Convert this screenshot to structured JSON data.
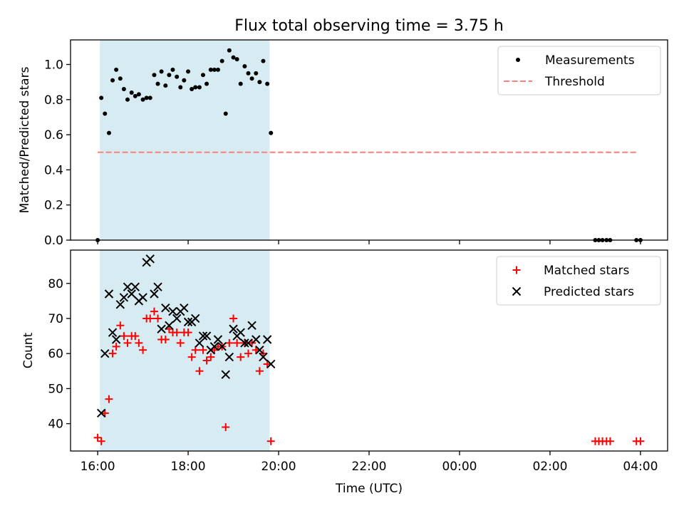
{
  "figure": {
    "title": "Flux total observing time = 3.75 h"
  },
  "colors": {
    "shade": "#add8e6",
    "measurement": "#000000",
    "threshold": "#ff7f7f",
    "matched": "#ff0000",
    "predicted": "#000000"
  },
  "chart_data": [
    {
      "type": "scatter",
      "title": "Flux total observing time = 3.75 h",
      "xlabel": "",
      "ylabel": "Matched/Predicted stars",
      "x_ticks": [
        "16:00",
        "18:00",
        "20:00",
        "22:00",
        "00:00",
        "02:00",
        "04:00"
      ],
      "x_tick_labels_shown": false,
      "xlim_hours": [
        15.4,
        28.6
      ],
      "ylim": [
        0.0,
        1.14
      ],
      "y_ticks": [
        "0.0",
        "0.2",
        "0.4",
        "0.6",
        "0.8",
        "1.0"
      ],
      "shaded_interval_hours": [
        16.05,
        19.8
      ],
      "legend_position": "top-right",
      "series": [
        {
          "name": "Measurements",
          "marker": "dot",
          "points": [
            [
              16.0,
              0.0
            ],
            [
              16.08,
              0.81
            ],
            [
              16.16,
              0.72
            ],
            [
              16.25,
              0.61
            ],
            [
              16.33,
              0.91
            ],
            [
              16.41,
              0.97
            ],
            [
              16.5,
              0.92
            ],
            [
              16.58,
              0.86
            ],
            [
              16.66,
              0.8
            ],
            [
              16.75,
              0.84
            ],
            [
              16.83,
              0.82
            ],
            [
              16.91,
              0.83
            ],
            [
              17.0,
              0.8
            ],
            [
              17.08,
              0.81
            ],
            [
              17.16,
              0.81
            ],
            [
              17.25,
              0.94
            ],
            [
              17.33,
              0.89
            ],
            [
              17.41,
              0.96
            ],
            [
              17.5,
              0.88
            ],
            [
              17.58,
              0.94
            ],
            [
              17.66,
              0.97
            ],
            [
              17.75,
              0.93
            ],
            [
              17.83,
              0.87
            ],
            [
              17.91,
              0.91
            ],
            [
              18.0,
              0.96
            ],
            [
              18.08,
              0.86
            ],
            [
              18.16,
              0.87
            ],
            [
              18.25,
              0.87
            ],
            [
              18.33,
              0.94
            ],
            [
              18.41,
              0.89
            ],
            [
              18.5,
              0.97
            ],
            [
              18.58,
              0.97
            ],
            [
              18.66,
              0.97
            ],
            [
              18.75,
              1.02
            ],
            [
              18.83,
              0.72
            ],
            [
              18.91,
              1.08
            ],
            [
              19.0,
              1.04
            ],
            [
              19.08,
              1.03
            ],
            [
              19.16,
              0.89
            ],
            [
              19.25,
              0.99
            ],
            [
              19.33,
              0.95
            ],
            [
              19.41,
              0.92
            ],
            [
              19.5,
              0.95
            ],
            [
              19.58,
              0.9
            ],
            [
              19.66,
              1.02
            ],
            [
              19.75,
              0.89
            ],
            [
              19.83,
              0.61
            ],
            [
              27.0,
              0.0
            ],
            [
              27.08,
              0.0
            ],
            [
              27.16,
              0.0
            ],
            [
              27.25,
              0.0
            ],
            [
              27.33,
              0.0
            ],
            [
              27.91,
              0.0
            ],
            [
              28.0,
              0.0
            ]
          ]
        },
        {
          "name": "Threshold",
          "style": "dashed",
          "x_range_hours": [
            16.0,
            27.92
          ],
          "value": 0.5
        }
      ]
    },
    {
      "type": "scatter",
      "title": "",
      "xlabel": "Time (UTC)",
      "ylabel": "Count",
      "x_ticks": [
        "16:00",
        "18:00",
        "20:00",
        "22:00",
        "00:00",
        "02:00",
        "04:00"
      ],
      "xlim_hours": [
        15.4,
        28.6
      ],
      "ylim": [
        32.2,
        89.5
      ],
      "y_ticks": [
        "40",
        "50",
        "60",
        "70",
        "80"
      ],
      "shaded_interval_hours": [
        16.05,
        19.8
      ],
      "legend_position": "top-right",
      "series": [
        {
          "name": "Matched stars",
          "marker": "plus",
          "points": [
            [
              16.0,
              36
            ],
            [
              16.08,
              35
            ],
            [
              16.16,
              43
            ],
            [
              16.25,
              47
            ],
            [
              16.33,
              60
            ],
            [
              16.41,
              62
            ],
            [
              16.5,
              68
            ],
            [
              16.58,
              65
            ],
            [
              16.66,
              63
            ],
            [
              16.75,
              65
            ],
            [
              16.83,
              65
            ],
            [
              16.91,
              63
            ],
            [
              17.0,
              61
            ],
            [
              17.08,
              70
            ],
            [
              17.16,
              70
            ],
            [
              17.25,
              72
            ],
            [
              17.33,
              70
            ],
            [
              17.41,
              64
            ],
            [
              17.5,
              64
            ],
            [
              17.58,
              67
            ],
            [
              17.66,
              66
            ],
            [
              17.75,
              66
            ],
            [
              17.83,
              63
            ],
            [
              17.91,
              66
            ],
            [
              18.0,
              66
            ],
            [
              18.08,
              59
            ],
            [
              18.16,
              61
            ],
            [
              18.25,
              55
            ],
            [
              18.33,
              61
            ],
            [
              18.41,
              58
            ],
            [
              18.5,
              59
            ],
            [
              18.58,
              61
            ],
            [
              18.66,
              62
            ],
            [
              18.75,
              62
            ],
            [
              18.83,
              39
            ],
            [
              18.91,
              63
            ],
            [
              19.0,
              70
            ],
            [
              19.08,
              63
            ],
            [
              19.16,
              59
            ],
            [
              19.25,
              63
            ],
            [
              19.33,
              60
            ],
            [
              19.41,
              63
            ],
            [
              19.5,
              61
            ],
            [
              19.58,
              55
            ],
            [
              19.66,
              60
            ],
            [
              19.75,
              57
            ],
            [
              19.83,
              35
            ],
            [
              27.0,
              35
            ],
            [
              27.08,
              35
            ],
            [
              27.16,
              35
            ],
            [
              27.25,
              35
            ],
            [
              27.33,
              35
            ],
            [
              27.91,
              35
            ],
            [
              28.0,
              35
            ]
          ]
        },
        {
          "name": "Predicted stars",
          "marker": "x",
          "points": [
            [
              16.08,
              43
            ],
            [
              16.16,
              60
            ],
            [
              16.25,
              77
            ],
            [
              16.33,
              66
            ],
            [
              16.41,
              64
            ],
            [
              16.5,
              74
            ],
            [
              16.58,
              76
            ],
            [
              16.66,
              79
            ],
            [
              16.75,
              77
            ],
            [
              16.83,
              79
            ],
            [
              16.91,
              75
            ],
            [
              17.0,
              76
            ],
            [
              17.08,
              86
            ],
            [
              17.16,
              87
            ],
            [
              17.25,
              77
            ],
            [
              17.33,
              79
            ],
            [
              17.41,
              67
            ],
            [
              17.5,
              73
            ],
            [
              17.58,
              68
            ],
            [
              17.66,
              72
            ],
            [
              17.75,
              70
            ],
            [
              17.83,
              72
            ],
            [
              17.91,
              73
            ],
            [
              18.0,
              69
            ],
            [
              18.08,
              69
            ],
            [
              18.16,
              70
            ],
            [
              18.25,
              63
            ],
            [
              18.33,
              65
            ],
            [
              18.41,
              65
            ],
            [
              18.5,
              61
            ],
            [
              18.58,
              62
            ],
            [
              18.66,
              64
            ],
            [
              18.75,
              62
            ],
            [
              18.83,
              54
            ],
            [
              18.91,
              59
            ],
            [
              19.0,
              67
            ],
            [
              19.08,
              65
            ],
            [
              19.16,
              66
            ],
            [
              19.25,
              63
            ],
            [
              19.33,
              63
            ],
            [
              19.41,
              68
            ],
            [
              19.5,
              64
            ],
            [
              19.58,
              61
            ],
            [
              19.66,
              59
            ],
            [
              19.75,
              64
            ],
            [
              19.83,
              57
            ]
          ]
        }
      ]
    }
  ]
}
